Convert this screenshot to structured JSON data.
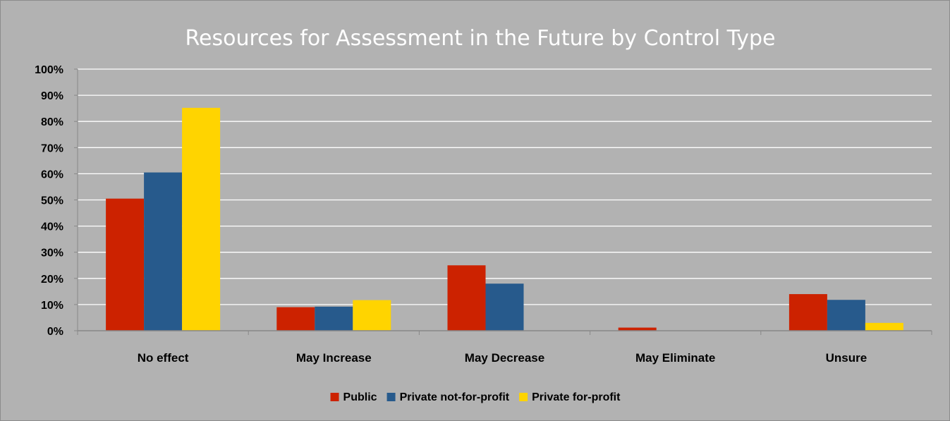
{
  "chart_data": {
    "type": "bar",
    "title": "Resources for Assessment in the Future by Control Type",
    "categories": [
      "No effect",
      "May Increase",
      "May Decrease",
      "May Eliminate",
      "Unsure"
    ],
    "series": [
      {
        "name": "Public",
        "color": "#cc2200",
        "values": [
          50.5,
          9,
          25,
          1.2,
          14
        ]
      },
      {
        "name": "Private not-for-profit",
        "color": "#275a8c",
        "values": [
          60.5,
          9.2,
          18,
          0,
          11.8
        ]
      },
      {
        "name": "Private for-profit",
        "color": "#ffd400",
        "values": [
          85.2,
          11.7,
          0,
          0,
          3
        ]
      }
    ],
    "ylim": [
      0,
      100
    ],
    "yticks": [
      "0%",
      "10%",
      "20%",
      "30%",
      "40%",
      "50%",
      "60%",
      "70%",
      "80%",
      "90%",
      "100%"
    ],
    "grid": true,
    "legend_position": "bottom",
    "colors": {
      "background": "#b2b2b2",
      "gridline": "#ffffff",
      "title": "#ffffff"
    }
  }
}
